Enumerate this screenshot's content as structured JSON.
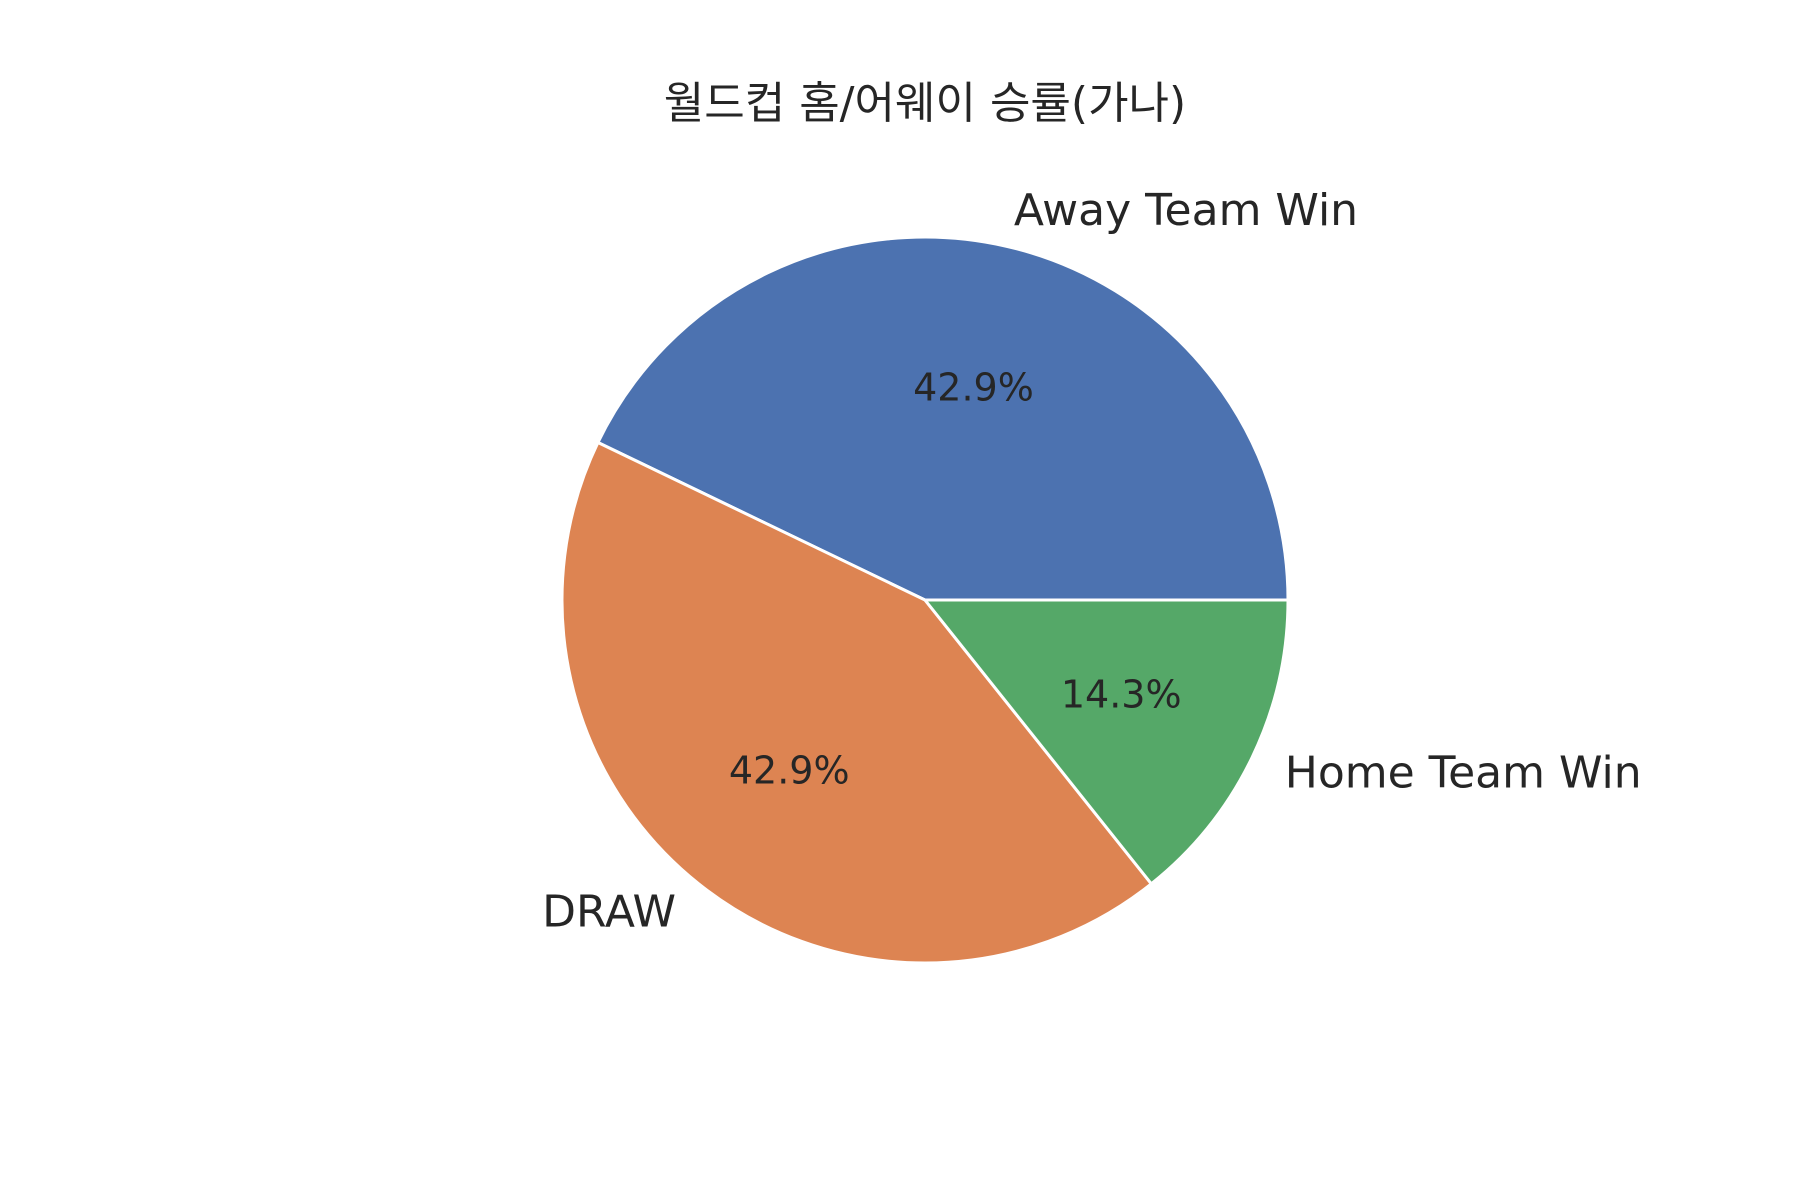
{
  "chart_data": {
    "type": "pie",
    "title": "월드컵 홈/어웨이 승률(가나)",
    "slices": [
      {
        "label": "Away Team Win",
        "value": 42.9,
        "pct_label": "42.9%",
        "color": "#4c72b0"
      },
      {
        "label": "DRAW",
        "value": 42.9,
        "pct_label": "42.9%",
        "color": "#dd8452"
      },
      {
        "label": "Home Team Win",
        "value": 14.3,
        "pct_label": "14.3%",
        "color": "#55a868"
      }
    ],
    "start_angle_deg": 0,
    "direction": "counterclockwise",
    "edge_color": "#ffffff",
    "legend": "none"
  }
}
